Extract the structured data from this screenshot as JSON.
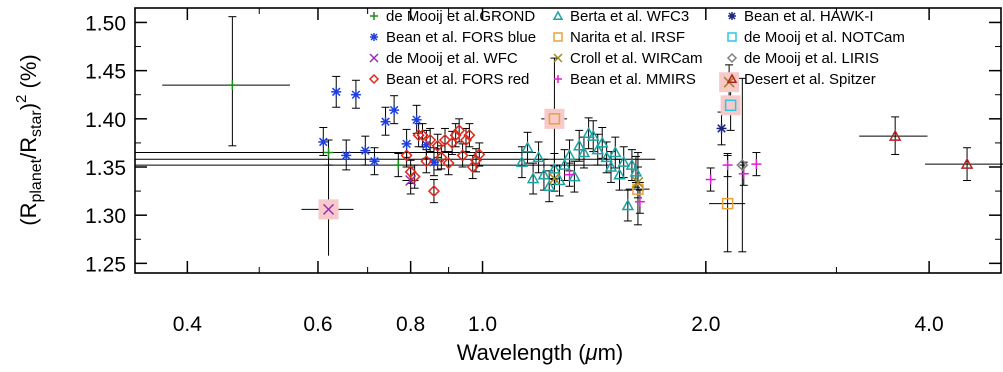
{
  "chart_data": {
    "type": "scatter",
    "xlabel": {
      "pre": "Wavelength (",
      "mu": "μ",
      "post": "m)"
    },
    "ylabel": {
      "open": "(R",
      "sub1": "planet",
      "mid": "/R",
      "sub2": "star",
      "close": ")",
      "sup": "2",
      "unit": " (%)"
    },
    "xscale": "log",
    "xlim": [
      0.34,
      5.0
    ],
    "ylim": [
      1.24,
      1.515
    ],
    "xticks": [
      0.4,
      0.6,
      0.8,
      1.0,
      2.0,
      4.0
    ],
    "xtick_labels": [
      "0.4",
      "0.6",
      "0.8",
      "1.0",
      "2.0",
      "4.0"
    ],
    "yticks": [
      1.25,
      1.3,
      1.35,
      1.4,
      1.45,
      1.5
    ],
    "ytick_labels": [
      "1.25",
      "1.30",
      "1.35",
      "1.40",
      "1.45",
      "1.50"
    ],
    "legend": {
      "placement": "top-right",
      "columns": 3
    },
    "series": [
      {
        "name": "de Mooij et al.GROND",
        "marker": "plus",
        "color": "#1b8a1b",
        "points": [
          [
            0.46,
            1.435,
            0.09,
            1.372,
            1.506
          ],
          [
            0.62,
            1.365,
            0.56,
            1.352,
            1.378
          ],
          [
            0.77,
            1.352,
            0.71,
            1.34,
            1.364
          ],
          [
            0.87,
            1.358,
            0.84,
            1.347,
            1.369
          ]
        ]
      },
      {
        "name": "Bean et al. FORS blue",
        "marker": "asterisk",
        "color": "#1f3fe0",
        "points": [
          [
            0.61,
            1.376,
            0,
            1.362,
            1.391
          ],
          [
            0.635,
            1.428,
            0,
            1.412,
            1.444
          ],
          [
            0.655,
            1.362,
            0,
            1.347,
            1.378
          ],
          [
            0.675,
            1.425,
            0,
            1.411,
            1.44
          ],
          [
            0.695,
            1.367,
            0,
            1.352,
            1.382
          ],
          [
            0.715,
            1.356,
            0,
            1.342,
            1.37
          ],
          [
            0.74,
            1.397,
            0,
            1.383,
            1.412
          ],
          [
            0.76,
            1.409,
            0,
            1.395,
            1.424
          ],
          [
            0.79,
            1.374,
            0,
            1.36,
            1.389
          ],
          [
            0.815,
            1.399,
            0,
            1.385,
            1.414
          ],
          [
            0.84,
            1.373,
            0,
            1.359,
            1.388
          ],
          [
            0.86,
            1.355,
            0,
            1.341,
            1.37
          ]
        ]
      },
      {
        "name": "de Mooij et al. WFC",
        "marker": "x",
        "color": "#9b2db0",
        "points": [
          [
            0.8,
            1.336,
            0.02,
            1.322,
            1.35
          ]
        ]
      },
      {
        "name": "Bean et al. FORS red",
        "marker": "diamond",
        "color": "#e0281c",
        "points": [
          [
            0.79,
            1.362,
            0,
            1.35,
            1.374
          ],
          [
            0.8,
            1.345,
            0,
            1.333,
            1.357
          ],
          [
            0.81,
            1.34,
            0,
            1.328,
            1.352
          ],
          [
            0.82,
            1.383,
            0,
            1.371,
            1.395
          ],
          [
            0.83,
            1.383,
            0,
            1.371,
            1.395
          ],
          [
            0.84,
            1.356,
            0,
            1.344,
            1.368
          ],
          [
            0.85,
            1.378,
            0,
            1.366,
            1.39
          ],
          [
            0.86,
            1.325,
            0,
            1.313,
            1.337
          ],
          [
            0.87,
            1.372,
            0,
            1.36,
            1.384
          ],
          [
            0.88,
            1.36,
            0,
            1.348,
            1.372
          ],
          [
            0.89,
            1.378,
            0,
            1.366,
            1.39
          ],
          [
            0.9,
            1.354,
            0,
            1.342,
            1.366
          ],
          [
            0.91,
            1.375,
            0,
            1.363,
            1.387
          ],
          [
            0.92,
            1.383,
            0,
            1.371,
            1.395
          ],
          [
            0.93,
            1.388,
            0,
            1.376,
            1.4
          ],
          [
            0.94,
            1.362,
            0,
            1.35,
            1.374
          ],
          [
            0.95,
            1.378,
            0,
            1.366,
            1.39
          ],
          [
            0.96,
            1.383,
            0,
            1.371,
            1.395
          ],
          [
            0.97,
            1.35,
            0,
            1.338,
            1.362
          ],
          [
            0.98,
            1.357,
            0,
            1.345,
            1.369
          ],
          [
            0.99,
            1.363,
            0,
            1.351,
            1.375
          ]
        ]
      },
      {
        "name": "Berta et al. WFC3",
        "marker": "triangle",
        "color": "#1aa3a3",
        "points": [
          [
            1.13,
            1.355,
            0,
            1.339,
            1.371
          ],
          [
            1.15,
            1.37,
            0,
            1.354,
            1.386
          ],
          [
            1.17,
            1.338,
            0,
            1.322,
            1.354
          ],
          [
            1.19,
            1.36,
            0,
            1.344,
            1.376
          ],
          [
            1.21,
            1.342,
            0,
            1.326,
            1.358
          ],
          [
            1.23,
            1.33,
            0,
            1.314,
            1.346
          ],
          [
            1.25,
            1.348,
            0,
            1.332,
            1.364
          ],
          [
            1.27,
            1.336,
            0,
            1.32,
            1.352
          ],
          [
            1.29,
            1.352,
            0,
            1.336,
            1.368
          ],
          [
            1.31,
            1.362,
            0,
            1.346,
            1.378
          ],
          [
            1.33,
            1.34,
            0,
            1.324,
            1.356
          ],
          [
            1.35,
            1.372,
            0,
            1.356,
            1.388
          ],
          [
            1.37,
            1.365,
            0,
            1.349,
            1.381
          ],
          [
            1.39,
            1.385,
            0,
            1.369,
            1.401
          ],
          [
            1.41,
            1.382,
            0,
            1.366,
            1.398
          ],
          [
            1.43,
            1.368,
            0,
            1.352,
            1.384
          ],
          [
            1.45,
            1.375,
            0,
            1.359,
            1.391
          ],
          [
            1.47,
            1.36,
            0,
            1.344,
            1.376
          ],
          [
            1.49,
            1.35,
            0,
            1.334,
            1.366
          ],
          [
            1.51,
            1.365,
            0,
            1.349,
            1.381
          ],
          [
            1.53,
            1.342,
            0,
            1.326,
            1.358
          ],
          [
            1.55,
            1.355,
            0,
            1.339,
            1.371
          ],
          [
            1.57,
            1.31,
            0,
            1.294,
            1.326
          ],
          [
            1.59,
            1.352,
            0,
            1.336,
            1.368
          ],
          [
            1.61,
            1.345,
            0,
            1.329,
            1.361
          ]
        ]
      },
      {
        "name": "Narita et al. IRSF",
        "marker": "square",
        "color": "#e8a33a",
        "points": [
          [
            1.25,
            1.4,
            0.05,
            1.337,
            1.463
          ],
          [
            1.62,
            1.327,
            0.06,
            1.29,
            1.365
          ],
          [
            2.14,
            1.312,
            0.12,
            1.262,
            1.362
          ]
        ]
      },
      {
        "name": "Croll et al. WIRCam",
        "marker": "x",
        "color": "#a38a1a",
        "points": [
          [
            1.25,
            1.338,
            0.02,
            1.325,
            1.351
          ],
          [
            1.62,
            1.334,
            0.03,
            1.318,
            1.35
          ],
          [
            2.15,
            1.438,
            0.03,
            1.42,
            1.456
          ]
        ]
      },
      {
        "name": "Bean et al. MMIRS",
        "marker": "plus",
        "color": "#e21fd6",
        "points": [
          [
            1.31,
            1.342,
            0.015,
            1.33,
            1.354
          ],
          [
            1.63,
            1.314,
            0.015,
            1.302,
            1.326
          ],
          [
            2.03,
            1.337,
            0.015,
            1.325,
            1.349
          ],
          [
            2.14,
            1.352,
            0.015,
            1.34,
            1.364
          ],
          [
            2.25,
            1.343,
            0.015,
            1.331,
            1.355
          ],
          [
            2.34,
            1.353,
            0.015,
            1.341,
            1.365
          ]
        ]
      },
      {
        "name": "Bean et al. HAWK-I",
        "marker": "asterisk",
        "color": "#1a237e",
        "points": [
          [
            2.1,
            1.39,
            0.02,
            1.373,
            1.407
          ]
        ]
      },
      {
        "name": "de Mooij et al. NOTCam",
        "marker": "square",
        "color": "#27c9e3",
        "points": [
          [
            2.16,
            1.414,
            0.04,
            1.388,
            1.44
          ]
        ]
      },
      {
        "name": "de Mooij et al. LIRIS",
        "marker": "diamond",
        "color": "#808080",
        "points": [
          [
            2.24,
            1.352,
            0.02,
            1.262,
            1.442
          ]
        ]
      },
      {
        "name": "Desert et al. Spitzer",
        "marker": "triangle",
        "color": "#b22222",
        "points": [
          [
            3.6,
            1.382,
            0.38,
            1.363,
            1.402
          ],
          [
            4.5,
            1.353,
            0.55,
            1.336,
            1.37
          ]
        ]
      }
    ],
    "highlight_color": "#f7c9c9"
  }
}
